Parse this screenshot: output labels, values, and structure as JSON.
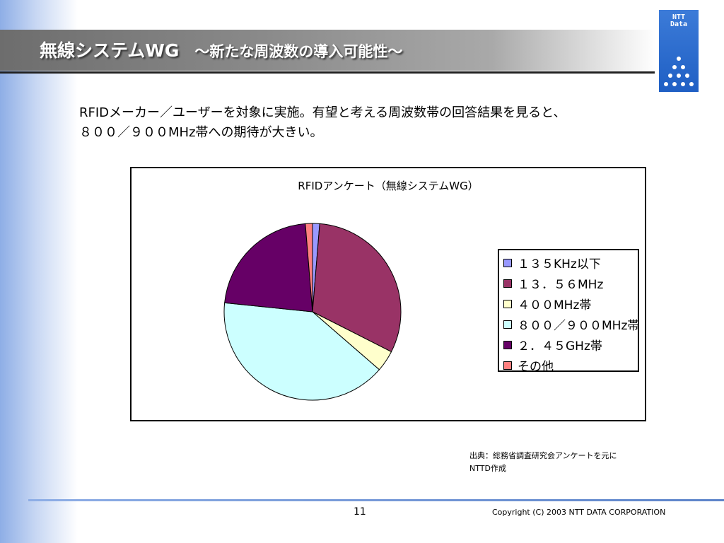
{
  "slide": {
    "title": "無線システムWG",
    "subtitle": "～新たな周波数の導入可能性～",
    "intro_lines": [
      "RFIDメーカー／ユーザーを対象に実施。有望と考える周波数帯の回答結果を見ると、",
      "８００／９００MHz帯への期待が大きい。"
    ],
    "source_lines": [
      "出典：総務省調査研究会アンケートを元に",
      "NTTD作成"
    ],
    "page_number": "11",
    "copyright": "Copyright (C) 2003 NTT DATA CORPORATION"
  },
  "logo": {
    "text_line1": "NTT",
    "text_line2": "Data",
    "color": "#2b6bd0"
  },
  "chart_data": {
    "type": "pie",
    "title": "RFIDアンケート（無線システムWG）",
    "categories": [
      "１３５KHz以下",
      "１３．５６MHz",
      "４００MHz帯",
      "８００／９００MHz帯",
      "２．４５GHz帯",
      "その他"
    ],
    "values": [
      1.3,
      31.2,
      3.9,
      40.3,
      22.1,
      1.3
    ],
    "unit": "%",
    "colors": [
      "#9999ff",
      "#993366",
      "#ffffcc",
      "#ccffff",
      "#660066",
      "#ff8080"
    ],
    "legend_position": "right"
  }
}
